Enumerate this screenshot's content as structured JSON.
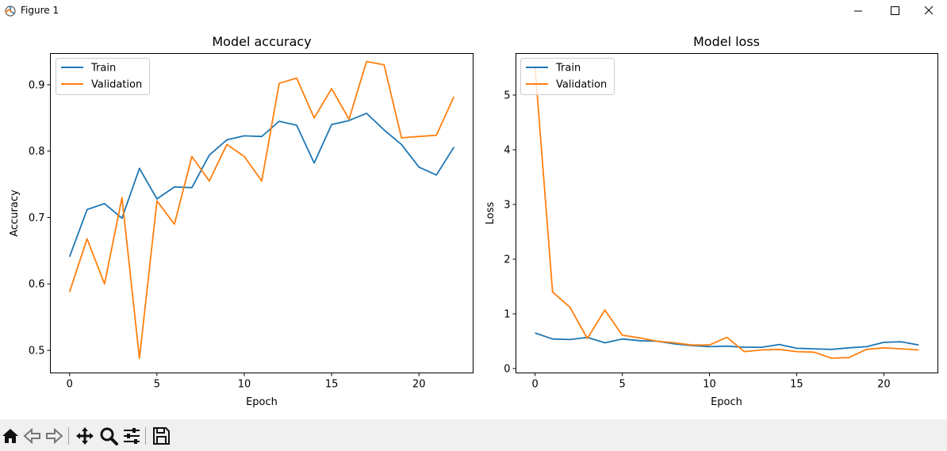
{
  "window": {
    "title": "Figure 1"
  },
  "toolbar": {
    "buttons": [
      "home-icon",
      "back-icon",
      "forward-icon",
      "pan-icon",
      "zoom-icon",
      "configure-subplots-icon",
      "save-icon"
    ]
  },
  "colors": {
    "train": "#1f77b4",
    "validation": "#ff7f0e",
    "toolbar_bg": "#f0f0f0"
  },
  "chart_data": [
    {
      "type": "line",
      "title": "Model accuracy",
      "xlabel": "Epoch",
      "ylabel": "Accuracy",
      "xlim": [
        -1.1,
        23.1
      ],
      "ylim": [
        0.466,
        0.947
      ],
      "xticks": [
        0,
        5,
        10,
        15,
        20
      ],
      "yticks": [
        0.5,
        0.6,
        0.7,
        0.8,
        0.9
      ],
      "ytick_labels": [
        "0.5",
        "0.6",
        "0.7",
        "0.8",
        "0.9"
      ],
      "legend": "upper left",
      "grid": false,
      "x": [
        0,
        1,
        2,
        3,
        4,
        5,
        6,
        7,
        8,
        9,
        10,
        11,
        12,
        13,
        14,
        15,
        16,
        17,
        18,
        19,
        20,
        21,
        22
      ],
      "series": [
        {
          "name": "Train",
          "color": "#1f77b4",
          "values": [
            0.641,
            0.712,
            0.721,
            0.699,
            0.774,
            0.728,
            0.746,
            0.745,
            0.794,
            0.817,
            0.823,
            0.822,
            0.845,
            0.839,
            0.782,
            0.84,
            0.846,
            0.857,
            0.832,
            0.81,
            0.776,
            0.764,
            0.806
          ]
        },
        {
          "name": "Validation",
          "color": "#ff7f0e",
          "values": [
            0.588,
            0.668,
            0.6,
            0.73,
            0.488,
            0.725,
            0.69,
            0.792,
            0.755,
            0.81,
            0.792,
            0.755,
            0.902,
            0.91,
            0.85,
            0.894,
            0.848,
            0.935,
            0.93,
            0.82,
            0.822,
            0.824,
            0.882
          ]
        }
      ]
    },
    {
      "type": "line",
      "title": "Model loss",
      "xlabel": "Epoch",
      "ylabel": "Loss",
      "xlim": [
        -1.1,
        23.1
      ],
      "ylim": [
        -0.08,
        5.76
      ],
      "xticks": [
        0,
        5,
        10,
        15,
        20
      ],
      "yticks": [
        0,
        1,
        2,
        3,
        4,
        5
      ],
      "ytick_labels": [
        "0",
        "1",
        "2",
        "3",
        "4",
        "5"
      ],
      "legend": "upper left",
      "grid": false,
      "x": [
        0,
        1,
        2,
        3,
        4,
        5,
        6,
        7,
        8,
        9,
        10,
        11,
        12,
        13,
        14,
        15,
        16,
        17,
        18,
        19,
        20,
        21,
        22
      ],
      "series": [
        {
          "name": "Train",
          "color": "#1f77b4",
          "values": [
            0.65,
            0.54,
            0.53,
            0.57,
            0.47,
            0.54,
            0.51,
            0.5,
            0.45,
            0.42,
            0.4,
            0.41,
            0.39,
            0.39,
            0.44,
            0.37,
            0.36,
            0.35,
            0.38,
            0.4,
            0.48,
            0.49,
            0.43
          ]
        },
        {
          "name": "Validation",
          "color": "#ff7f0e",
          "values": [
            5.5,
            1.4,
            1.12,
            0.55,
            1.07,
            0.61,
            0.56,
            0.5,
            0.47,
            0.43,
            0.43,
            0.57,
            0.31,
            0.34,
            0.35,
            0.31,
            0.3,
            0.19,
            0.2,
            0.35,
            0.38,
            0.36,
            0.34
          ]
        }
      ]
    }
  ]
}
